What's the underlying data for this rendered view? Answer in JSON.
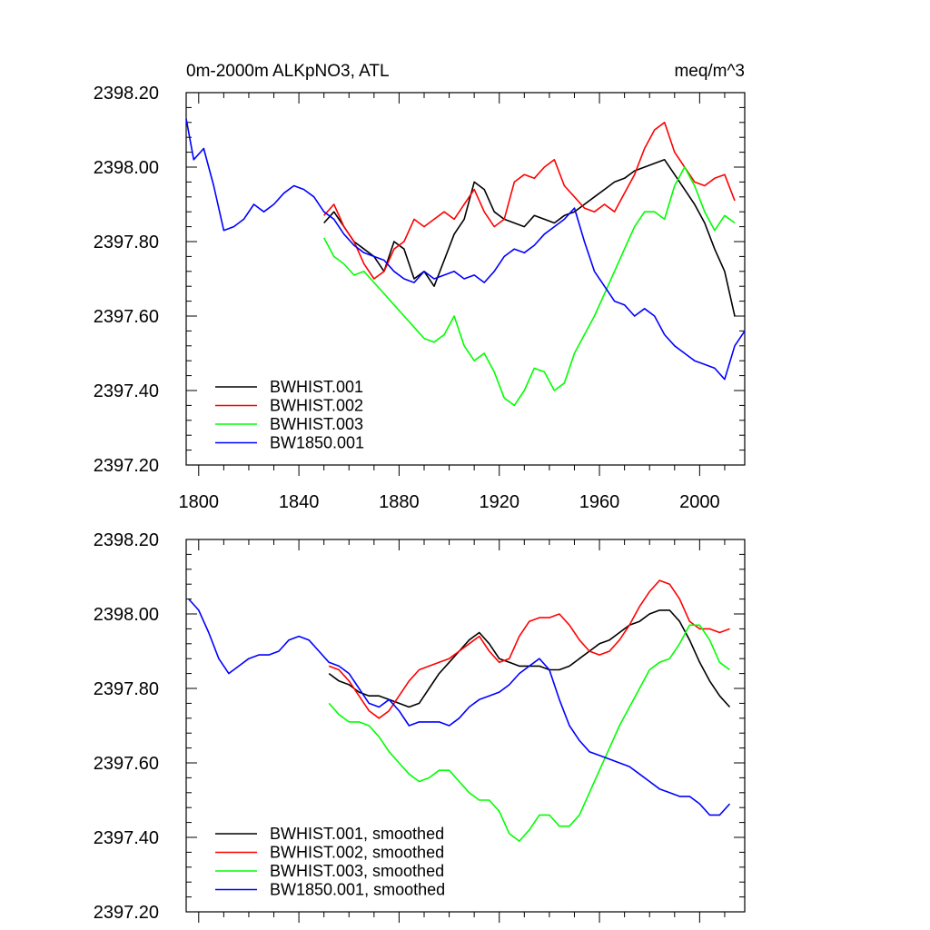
{
  "chart_data": [
    {
      "type": "line",
      "title_left": "0m-2000m ALKpNO3, ATL",
      "title_right": "meq/m^3",
      "xlabel": "",
      "ylabel": "",
      "xlim": [
        1795,
        2018
      ],
      "ylim": [
        2397.2,
        2398.2
      ],
      "xticks": [
        1800,
        1840,
        1880,
        1920,
        1960,
        2000
      ],
      "yticks": [
        2397.2,
        2397.4,
        2397.6,
        2397.8,
        2398.0,
        2398.2
      ],
      "ytick_labels": [
        "2397.20",
        "2397.40",
        "2397.60",
        "2397.80",
        "2398.00",
        "2398.20"
      ],
      "xtick_labels_shown": true,
      "legend_position": "bottom-left",
      "series": [
        {
          "name": "BWHIST.001",
          "color": "#000000",
          "x": [
            1850,
            1854,
            1858,
            1862,
            1866,
            1870,
            1874,
            1878,
            1882,
            1886,
            1890,
            1894,
            1898,
            1902,
            1906,
            1910,
            1914,
            1918,
            1922,
            1926,
            1930,
            1934,
            1938,
            1942,
            1946,
            1950,
            1954,
            1958,
            1962,
            1966,
            1970,
            1974,
            1978,
            1982,
            1986,
            1990,
            1994,
            1998,
            2002,
            2006,
            2010,
            2014
          ],
          "y": [
            2397.85,
            2397.88,
            2397.84,
            2397.8,
            2397.78,
            2397.76,
            2397.72,
            2397.8,
            2397.78,
            2397.7,
            2397.72,
            2397.68,
            2397.75,
            2397.82,
            2397.86,
            2397.96,
            2397.94,
            2397.88,
            2397.86,
            2397.85,
            2397.84,
            2397.87,
            2397.86,
            2397.85,
            2397.87,
            2397.88,
            2397.9,
            2397.92,
            2397.94,
            2397.96,
            2397.97,
            2397.99,
            2398.0,
            2398.01,
            2398.02,
            2397.98,
            2397.94,
            2397.9,
            2397.85,
            2397.78,
            2397.72,
            2397.6
          ]
        },
        {
          "name": "BWHIST.002",
          "color": "#ff0000",
          "x": [
            1850,
            1854,
            1858,
            1862,
            1866,
            1870,
            1874,
            1878,
            1882,
            1886,
            1890,
            1894,
            1898,
            1902,
            1906,
            1910,
            1914,
            1918,
            1922,
            1926,
            1930,
            1934,
            1938,
            1942,
            1946,
            1950,
            1954,
            1958,
            1962,
            1966,
            1970,
            1974,
            1978,
            1982,
            1986,
            1990,
            1994,
            1998,
            2002,
            2006,
            2010,
            2014
          ],
          "y": [
            2397.87,
            2397.9,
            2397.84,
            2397.8,
            2397.74,
            2397.7,
            2397.72,
            2397.78,
            2397.8,
            2397.86,
            2397.84,
            2397.86,
            2397.88,
            2397.86,
            2397.9,
            2397.94,
            2397.88,
            2397.84,
            2397.86,
            2397.96,
            2397.98,
            2397.97,
            2398.0,
            2398.02,
            2397.95,
            2397.92,
            2397.89,
            2397.88,
            2397.9,
            2397.88,
            2397.93,
            2397.98,
            2398.05,
            2398.1,
            2398.12,
            2398.04,
            2398.0,
            2397.96,
            2397.95,
            2397.97,
            2397.98,
            2397.91
          ]
        },
        {
          "name": "BWHIST.003",
          "color": "#00ff00",
          "x": [
            1850,
            1854,
            1858,
            1862,
            1866,
            1870,
            1874,
            1878,
            1882,
            1886,
            1890,
            1894,
            1898,
            1902,
            1906,
            1910,
            1914,
            1918,
            1922,
            1926,
            1930,
            1934,
            1938,
            1942,
            1946,
            1950,
            1954,
            1958,
            1962,
            1966,
            1970,
            1974,
            1978,
            1982,
            1986,
            1990,
            1994,
            1998,
            2002,
            2006,
            2010,
            2014
          ],
          "y": [
            2397.81,
            2397.76,
            2397.74,
            2397.71,
            2397.72,
            2397.69,
            2397.66,
            2397.63,
            2397.6,
            2397.57,
            2397.54,
            2397.53,
            2397.55,
            2397.6,
            2397.52,
            2397.48,
            2397.5,
            2397.45,
            2397.38,
            2397.36,
            2397.4,
            2397.46,
            2397.45,
            2397.4,
            2397.42,
            2397.5,
            2397.55,
            2397.6,
            2397.66,
            2397.72,
            2397.78,
            2397.84,
            2397.88,
            2397.88,
            2397.86,
            2397.95,
            2398.0,
            2397.95,
            2397.88,
            2397.83,
            2397.87,
            2397.85
          ]
        },
        {
          "name": "BW1850.001",
          "color": "#0000ff",
          "x": [
            1795,
            1798,
            1802,
            1806,
            1810,
            1814,
            1818,
            1822,
            1826,
            1830,
            1834,
            1838,
            1842,
            1846,
            1850,
            1854,
            1858,
            1862,
            1866,
            1870,
            1874,
            1878,
            1882,
            1886,
            1890,
            1894,
            1898,
            1902,
            1906,
            1910,
            1914,
            1918,
            1922,
            1926,
            1930,
            1934,
            1938,
            1942,
            1946,
            1950,
            1954,
            1958,
            1962,
            1966,
            1970,
            1974,
            1978,
            1982,
            1986,
            1990,
            1994,
            1998,
            2002,
            2006,
            2010,
            2014,
            2018
          ],
          "y": [
            2398.13,
            2398.02,
            2398.05,
            2397.95,
            2397.83,
            2397.84,
            2397.86,
            2397.9,
            2397.88,
            2397.9,
            2397.93,
            2397.95,
            2397.94,
            2397.92,
            2397.88,
            2397.86,
            2397.82,
            2397.79,
            2397.77,
            2397.76,
            2397.75,
            2397.72,
            2397.7,
            2397.69,
            2397.72,
            2397.7,
            2397.71,
            2397.72,
            2397.7,
            2397.71,
            2397.69,
            2397.72,
            2397.76,
            2397.78,
            2397.77,
            2397.79,
            2397.82,
            2397.84,
            2397.86,
            2397.89,
            2397.8,
            2397.72,
            2397.68,
            2397.64,
            2397.63,
            2397.6,
            2397.62,
            2397.6,
            2397.55,
            2397.52,
            2397.5,
            2397.48,
            2397.47,
            2397.46,
            2397.43,
            2397.52,
            2397.56
          ]
        }
      ]
    },
    {
      "type": "line",
      "title_left": "",
      "title_right": "",
      "xlabel": "",
      "ylabel": "",
      "xlim": [
        1795,
        2018
      ],
      "ylim": [
        2397.2,
        2398.2
      ],
      "xticks": [
        1800,
        1840,
        1880,
        1920,
        1960,
        2000
      ],
      "yticks": [
        2397.2,
        2397.4,
        2397.6,
        2397.8,
        2398.0,
        2398.2
      ],
      "ytick_labels": [
        "2397.20",
        "2397.40",
        "2397.60",
        "2397.80",
        "2398.00",
        "2398.20"
      ],
      "xtick_labels_shown": false,
      "legend_position": "bottom-left",
      "series": [
        {
          "name": "BWHIST.001, smoothed",
          "color": "#000000",
          "x": [
            1852,
            1856,
            1860,
            1864,
            1868,
            1872,
            1876,
            1880,
            1884,
            1888,
            1892,
            1896,
            1900,
            1904,
            1908,
            1912,
            1916,
            1920,
            1924,
            1928,
            1932,
            1936,
            1940,
            1944,
            1948,
            1952,
            1956,
            1960,
            1964,
            1968,
            1972,
            1976,
            1980,
            1984,
            1988,
            1992,
            1996,
            2000,
            2004,
            2008,
            2012
          ],
          "y": [
            2397.84,
            2397.82,
            2397.81,
            2397.79,
            2397.78,
            2397.78,
            2397.77,
            2397.76,
            2397.75,
            2397.76,
            2397.8,
            2397.84,
            2397.87,
            2397.9,
            2397.93,
            2397.95,
            2397.92,
            2397.88,
            2397.87,
            2397.86,
            2397.86,
            2397.86,
            2397.85,
            2397.85,
            2397.86,
            2397.88,
            2397.9,
            2397.92,
            2397.93,
            2397.95,
            2397.97,
            2397.98,
            2398.0,
            2398.01,
            2398.01,
            2397.98,
            2397.93,
            2397.87,
            2397.82,
            2397.78,
            2397.75
          ]
        },
        {
          "name": "BWHIST.002, smoothed",
          "color": "#ff0000",
          "x": [
            1852,
            1856,
            1860,
            1864,
            1868,
            1872,
            1876,
            1880,
            1884,
            1888,
            1892,
            1896,
            1900,
            1904,
            1908,
            1912,
            1916,
            1920,
            1924,
            1928,
            1932,
            1936,
            1940,
            1944,
            1948,
            1952,
            1956,
            1960,
            1964,
            1968,
            1972,
            1976,
            1980,
            1984,
            1988,
            1992,
            1996,
            2000,
            2004,
            2008,
            2012
          ],
          "y": [
            2397.86,
            2397.85,
            2397.82,
            2397.78,
            2397.74,
            2397.72,
            2397.74,
            2397.78,
            2397.82,
            2397.85,
            2397.86,
            2397.87,
            2397.88,
            2397.9,
            2397.92,
            2397.94,
            2397.9,
            2397.87,
            2397.88,
            2397.94,
            2397.98,
            2397.99,
            2397.99,
            2398.0,
            2397.97,
            2397.93,
            2397.9,
            2397.89,
            2397.9,
            2397.93,
            2397.97,
            2398.02,
            2398.06,
            2398.09,
            2398.08,
            2398.04,
            2397.98,
            2397.96,
            2397.96,
            2397.95,
            2397.96
          ]
        },
        {
          "name": "BWHIST.003, smoothed",
          "color": "#00ff00",
          "x": [
            1852,
            1856,
            1860,
            1864,
            1868,
            1872,
            1876,
            1880,
            1884,
            1888,
            1892,
            1896,
            1900,
            1904,
            1908,
            1912,
            1916,
            1920,
            1924,
            1928,
            1932,
            1936,
            1940,
            1944,
            1948,
            1952,
            1956,
            1960,
            1964,
            1968,
            1972,
            1976,
            1980,
            1984,
            1988,
            1992,
            1996,
            2000,
            2004,
            2008,
            2012
          ],
          "y": [
            2397.76,
            2397.73,
            2397.71,
            2397.71,
            2397.7,
            2397.67,
            2397.63,
            2397.6,
            2397.57,
            2397.55,
            2397.56,
            2397.58,
            2397.58,
            2397.55,
            2397.52,
            2397.5,
            2397.5,
            2397.47,
            2397.41,
            2397.39,
            2397.42,
            2397.46,
            2397.46,
            2397.43,
            2397.43,
            2397.46,
            2397.52,
            2397.58,
            2397.64,
            2397.7,
            2397.75,
            2397.8,
            2397.85,
            2397.87,
            2397.88,
            2397.92,
            2397.97,
            2397.97,
            2397.93,
            2397.87,
            2397.85
          ]
        },
        {
          "name": "BW1850.001, smoothed",
          "color": "#0000ff",
          "x": [
            1796,
            1800,
            1804,
            1808,
            1812,
            1816,
            1820,
            1824,
            1828,
            1832,
            1836,
            1840,
            1844,
            1848,
            1852,
            1856,
            1860,
            1864,
            1868,
            1872,
            1876,
            1880,
            1884,
            1888,
            1892,
            1896,
            1900,
            1904,
            1908,
            1912,
            1916,
            1920,
            1924,
            1928,
            1932,
            1936,
            1940,
            1944,
            1948,
            1952,
            1956,
            1960,
            1964,
            1968,
            1972,
            1976,
            1980,
            1984,
            1988,
            1992,
            1996,
            2000,
            2004,
            2008,
            2012
          ],
          "y": [
            2398.04,
            2398.01,
            2397.95,
            2397.88,
            2397.84,
            2397.86,
            2397.88,
            2397.89,
            2397.89,
            2397.9,
            2397.93,
            2397.94,
            2397.93,
            2397.9,
            2397.87,
            2397.86,
            2397.84,
            2397.8,
            2397.76,
            2397.75,
            2397.77,
            2397.74,
            2397.7,
            2397.71,
            2397.71,
            2397.71,
            2397.7,
            2397.72,
            2397.75,
            2397.77,
            2397.78,
            2397.79,
            2397.81,
            2397.84,
            2397.86,
            2397.88,
            2397.85,
            2397.77,
            2397.7,
            2397.66,
            2397.63,
            2397.62,
            2397.61,
            2397.6,
            2397.59,
            2397.57,
            2397.55,
            2397.53,
            2397.52,
            2397.51,
            2397.51,
            2397.49,
            2397.46,
            2397.46,
            2397.49
          ]
        }
      ]
    }
  ]
}
